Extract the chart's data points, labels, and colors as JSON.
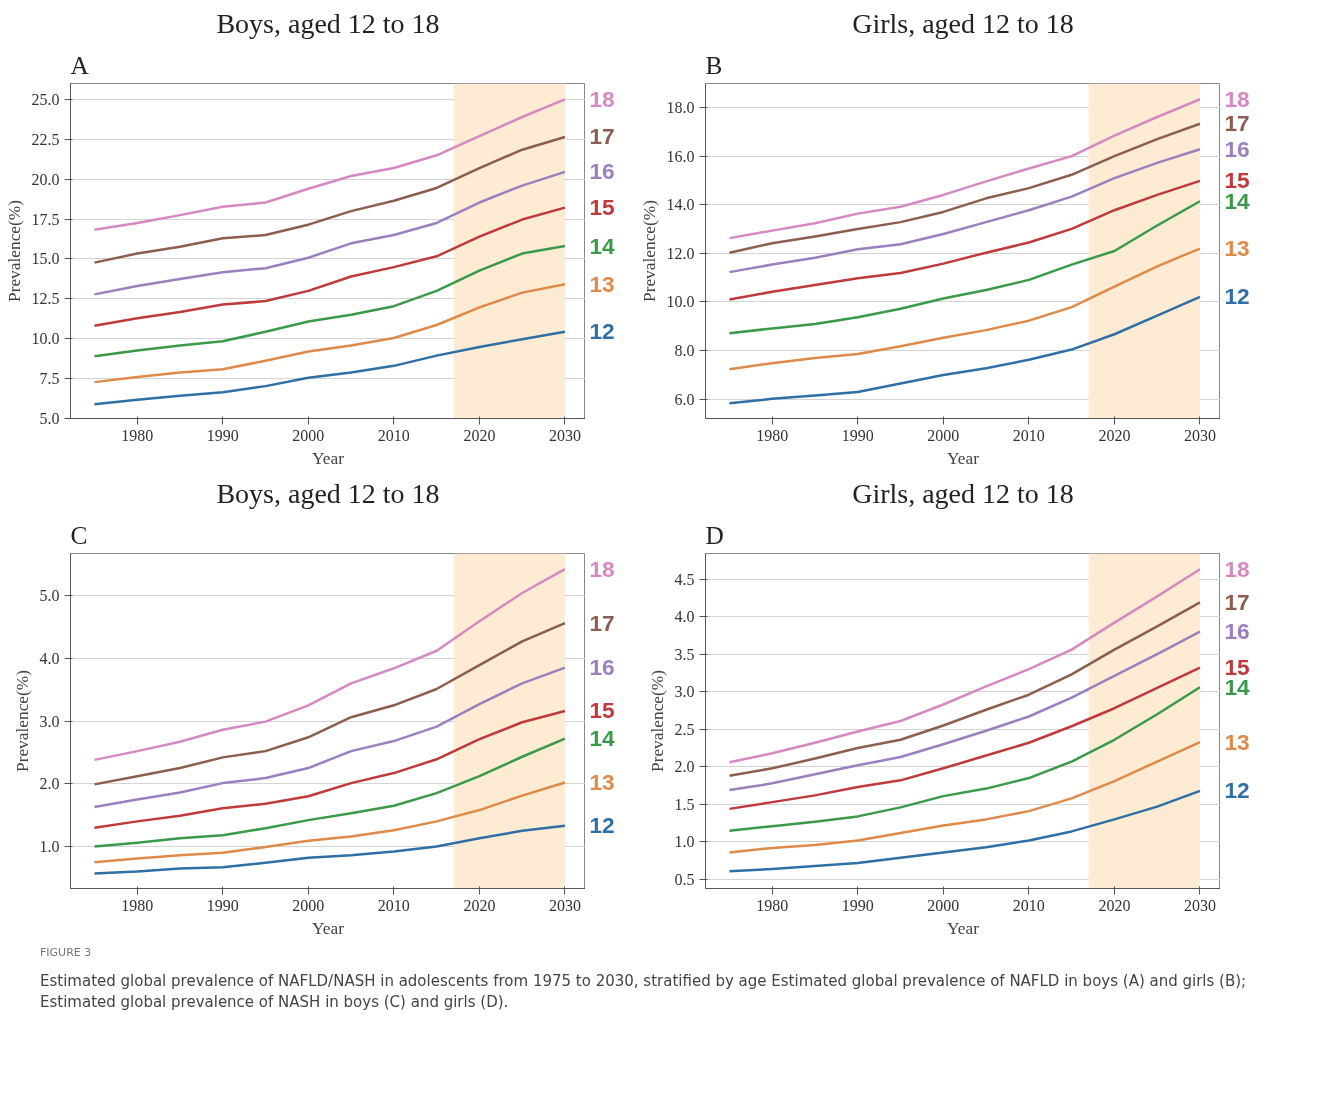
{
  "chart_data": [
    {
      "type": "line",
      "title": "Boys, aged 12 to 18",
      "xlabel": "Year",
      "ylabel": "Prevalence(%)",
      "annotations": [
        "A"
      ],
      "grid": "y",
      "legend": false,
      "line_style": "solid",
      "x": [
        1975,
        1980,
        1985,
        1990,
        1995,
        2000,
        2005,
        2010,
        2015,
        2020,
        2025,
        2030
      ],
      "xlim": [
        1972.2,
        2032.4
      ],
      "xticks": [
        1980,
        1990,
        2000,
        2010,
        2020,
        2030
      ],
      "ylim": [
        5,
        26
      ],
      "yticks": [
        {
          "value": 5,
          "label": "5.0"
        },
        {
          "value": 7.5,
          "label": "7.5"
        },
        {
          "value": 10,
          "label": "10.0"
        },
        {
          "value": 12.5,
          "label": "12.5"
        },
        {
          "value": 15,
          "label": "15.0"
        },
        {
          "value": 17.5,
          "label": "17.5"
        },
        {
          "value": 20,
          "label": "20.0"
        },
        {
          "value": 22.5,
          "label": "22.5"
        },
        {
          "value": 25,
          "label": "25.0"
        }
      ],
      "bands": [
        {
          "axis": "x",
          "from": 2017,
          "to": 2030,
          "color": "#fdebd3"
        }
      ],
      "series": [
        {
          "name": "12",
          "color": "#2f6fa6",
          "values": [
            5.9,
            6.17,
            6.43,
            6.64,
            7.03,
            7.56,
            7.88,
            8.3,
            8.94,
            9.48,
            9.97,
            10.44
          ]
        },
        {
          "name": "13",
          "color": "#e08a4a",
          "values": [
            7.28,
            7.6,
            7.88,
            8.09,
            8.62,
            9.2,
            9.58,
            10.05,
            10.86,
            11.97,
            12.89,
            13.42
          ]
        },
        {
          "name": "14",
          "color": "#3a9a4a",
          "values": [
            8.9,
            9.26,
            9.58,
            9.84,
            10.44,
            11.08,
            11.5,
            12.04,
            13.0,
            14.27,
            15.34,
            15.81
          ]
        },
        {
          "name": "15",
          "color": "#c0393b",
          "values": [
            10.82,
            11.29,
            11.67,
            12.14,
            12.36,
            13.0,
            13.9,
            14.49,
            15.17,
            16.4,
            17.47,
            18.22
          ]
        },
        {
          "name": "16",
          "color": "#9b7fc0",
          "values": [
            12.78,
            13.3,
            13.75,
            14.17,
            14.42,
            15.08,
            15.98,
            16.5,
            17.26,
            18.54,
            19.6,
            20.46
          ]
        },
        {
          "name": "17",
          "color": "#8c5e50",
          "values": [
            14.77,
            15.34,
            15.77,
            16.3,
            16.5,
            17.15,
            18.0,
            18.65,
            19.45,
            20.7,
            21.85,
            22.65
          ]
        },
        {
          "name": "18",
          "color": "#d689c0",
          "values": [
            16.83,
            17.26,
            17.75,
            18.28,
            18.54,
            19.4,
            20.2,
            20.7,
            21.5,
            22.7,
            23.9,
            25.0
          ]
        }
      ]
    },
    {
      "type": "line",
      "title": "Girls, aged 12 to 18",
      "xlabel": "Year",
      "ylabel": "Prevalence(%)",
      "annotations": [
        "B"
      ],
      "grid": "y",
      "legend": false,
      "line_style": "solid",
      "x": [
        1975,
        1980,
        1985,
        1990,
        1995,
        2000,
        2005,
        2010,
        2015,
        2020,
        2025,
        2030
      ],
      "xlim": [
        1972.2,
        2032.4
      ],
      "xticks": [
        1980,
        1990,
        2000,
        2010,
        2020,
        2030
      ],
      "ylim": [
        5.2,
        19.0
      ],
      "yticks": [
        {
          "value": 6,
          "label": "6.0"
        },
        {
          "value": 8,
          "label": "8.0"
        },
        {
          "value": 10,
          "label": "10.0"
        },
        {
          "value": 12,
          "label": "12.0"
        },
        {
          "value": 14,
          "label": "14.0"
        },
        {
          "value": 16,
          "label": "16.0"
        },
        {
          "value": 18,
          "label": "18.0"
        }
      ],
      "bands": [
        {
          "axis": "x",
          "from": 2017,
          "to": 2030,
          "color": "#fdebd3"
        }
      ],
      "series": [
        {
          "name": "12",
          "color": "#2f6fa6",
          "values": [
            5.83,
            6.01,
            6.15,
            6.29,
            6.64,
            6.99,
            7.27,
            7.62,
            8.04,
            8.67,
            9.44,
            10.21
          ]
        },
        {
          "name": "13",
          "color": "#e08a4a",
          "values": [
            7.23,
            7.48,
            7.69,
            7.86,
            8.18,
            8.53,
            8.84,
            9.23,
            9.79,
            10.63,
            11.47,
            12.2
          ]
        },
        {
          "name": "14",
          "color": "#3a9a4a",
          "values": [
            8.71,
            8.91,
            9.09,
            9.37,
            9.72,
            10.14,
            10.49,
            10.91,
            11.54,
            12.1,
            13.15,
            14.15
          ]
        },
        {
          "name": "15",
          "color": "#c0393b",
          "values": [
            10.1,
            10.42,
            10.7,
            10.98,
            11.19,
            11.58,
            12.03,
            12.45,
            13.01,
            13.78,
            14.41,
            14.99
          ]
        },
        {
          "name": "16",
          "color": "#9b7fc0",
          "values": [
            11.23,
            11.54,
            11.82,
            12.17,
            12.38,
            12.8,
            13.29,
            13.78,
            14.34,
            15.1,
            15.73,
            16.29
          ]
        },
        {
          "name": "17",
          "color": "#8c5e50",
          "values": [
            12.03,
            12.42,
            12.7,
            13.01,
            13.29,
            13.71,
            14.27,
            14.69,
            15.24,
            16.01,
            16.71,
            17.34
          ]
        },
        {
          "name": "18",
          "color": "#d689c0",
          "values": [
            12.63,
            12.94,
            13.24,
            13.64,
            13.92,
            14.41,
            14.97,
            15.5,
            16.01,
            16.85,
            17.62,
            18.35
          ]
        }
      ]
    },
    {
      "type": "line",
      "title": "Boys, aged 12 to 18",
      "xlabel": "Year",
      "ylabel": "Prevalence(%)",
      "annotations": [
        "C"
      ],
      "grid": "y",
      "legend": false,
      "line_style": "solid",
      "x": [
        1975,
        1980,
        1985,
        1990,
        1995,
        2000,
        2005,
        2010,
        2015,
        2020,
        2025,
        2030
      ],
      "xlim": [
        1972.2,
        2032.4
      ],
      "xticks": [
        1980,
        1990,
        2000,
        2010,
        2020,
        2030
      ],
      "ylim": [
        0.33,
        5.67
      ],
      "yticks": [
        {
          "value": 1,
          "label": "1.0"
        },
        {
          "value": 2,
          "label": "2.0"
        },
        {
          "value": 3,
          "label": "3.0"
        },
        {
          "value": 4,
          "label": "4.0"
        },
        {
          "value": 5,
          "label": "5.0"
        }
      ],
      "bands": [
        {
          "axis": "x",
          "from": 2017,
          "to": 2030,
          "color": "#fdebd3"
        }
      ],
      "series": [
        {
          "name": "12",
          "color": "#2f6fa6",
          "values": [
            0.57,
            0.6,
            0.65,
            0.67,
            0.74,
            0.82,
            0.86,
            0.92,
            1.0,
            1.13,
            1.25,
            1.33
          ]
        },
        {
          "name": "13",
          "color": "#e08a4a",
          "values": [
            0.75,
            0.81,
            0.86,
            0.9,
            0.99,
            1.09,
            1.16,
            1.26,
            1.4,
            1.58,
            1.81,
            2.02
          ]
        },
        {
          "name": "14",
          "color": "#3a9a4a",
          "values": [
            1.0,
            1.06,
            1.13,
            1.18,
            1.29,
            1.42,
            1.53,
            1.65,
            1.85,
            2.12,
            2.43,
            2.72
          ]
        },
        {
          "name": "15",
          "color": "#c0393b",
          "values": [
            1.3,
            1.4,
            1.49,
            1.61,
            1.68,
            1.8,
            2.01,
            2.17,
            2.39,
            2.71,
            2.98,
            3.16
          ]
        },
        {
          "name": "16",
          "color": "#9b7fc0",
          "values": [
            1.63,
            1.75,
            1.86,
            2.01,
            2.09,
            2.25,
            2.52,
            2.68,
            2.91,
            3.27,
            3.6,
            3.85
          ]
        },
        {
          "name": "17",
          "color": "#8c5e50",
          "values": [
            1.99,
            2.12,
            2.25,
            2.42,
            2.52,
            2.74,
            3.06,
            3.25,
            3.51,
            3.89,
            4.27,
            4.56
          ]
        },
        {
          "name": "18",
          "color": "#d689c0",
          "values": [
            2.38,
            2.52,
            2.67,
            2.86,
            2.99,
            3.25,
            3.6,
            3.84,
            4.12,
            4.59,
            5.04,
            5.42
          ]
        }
      ]
    },
    {
      "type": "line",
      "title": "Girls, aged 12 to 18",
      "xlabel": "Year",
      "ylabel": "Prevalence(%)",
      "annotations": [
        "D",
        "FIGURE 3",
        "Estimated global prevalence of NAFLD/NASH in adolescents from 1975 to 2030, stratified by age Estimated global prevalence of NAFLD in boys (A) and girls (B); Estimated global prevalence of NASH in boys (C) and girls (D)."
      ],
      "grid": "y",
      "legend": false,
      "line_style": "solid",
      "x": [
        1975,
        1980,
        1985,
        1990,
        1995,
        2000,
        2005,
        2010,
        2015,
        2020,
        2025,
        2030
      ],
      "xlim": [
        1972.2,
        2032.4
      ],
      "xticks": [
        1980,
        1990,
        2000,
        2010,
        2020,
        2030
      ],
      "ylim": [
        0.38,
        4.84
      ],
      "yticks": [
        {
          "value": 0.5,
          "label": "0.5"
        },
        {
          "value": 1,
          "label": "1.0"
        },
        {
          "value": 1.5,
          "label": "1.5"
        },
        {
          "value": 2,
          "label": "2.0"
        },
        {
          "value": 2.5,
          "label": "2.5"
        },
        {
          "value": 3,
          "label": "3.0"
        },
        {
          "value": 3.5,
          "label": "3.5"
        },
        {
          "value": 4,
          "label": "4.0"
        },
        {
          "value": 4.5,
          "label": "4.5"
        }
      ],
      "bands": [
        {
          "axis": "x",
          "from": 2017,
          "to": 2030,
          "color": "#fdebd3"
        }
      ],
      "series": [
        {
          "name": "12",
          "color": "#2f6fa6",
          "values": [
            0.61,
            0.64,
            0.68,
            0.72,
            0.79,
            0.86,
            0.93,
            1.02,
            1.14,
            1.3,
            1.47,
            1.68
          ]
        },
        {
          "name": "13",
          "color": "#e08a4a",
          "values": [
            0.86,
            0.92,
            0.96,
            1.02,
            1.12,
            1.22,
            1.3,
            1.41,
            1.58,
            1.81,
            2.07,
            2.33
          ]
        },
        {
          "name": "14",
          "color": "#3a9a4a",
          "values": [
            1.15,
            1.21,
            1.27,
            1.34,
            1.46,
            1.61,
            1.71,
            1.85,
            2.07,
            2.36,
            2.7,
            3.06
          ]
        },
        {
          "name": "15",
          "color": "#c0393b",
          "values": [
            1.44,
            1.53,
            1.62,
            1.73,
            1.82,
            1.98,
            2.15,
            2.32,
            2.54,
            2.78,
            3.05,
            3.32
          ]
        },
        {
          "name": "16",
          "color": "#9b7fc0",
          "values": [
            1.69,
            1.78,
            1.9,
            2.02,
            2.13,
            2.3,
            2.48,
            2.67,
            2.92,
            3.21,
            3.5,
            3.8
          ]
        },
        {
          "name": "17",
          "color": "#8c5e50",
          "values": [
            1.88,
            1.98,
            2.11,
            2.25,
            2.36,
            2.55,
            2.76,
            2.96,
            3.23,
            3.56,
            3.87,
            4.19
          ]
        },
        {
          "name": "18",
          "color": "#d689c0",
          "values": [
            2.06,
            2.18,
            2.32,
            2.47,
            2.61,
            2.83,
            3.07,
            3.3,
            3.56,
            3.92,
            4.27,
            4.63
          ]
        }
      ]
    }
  ]
}
